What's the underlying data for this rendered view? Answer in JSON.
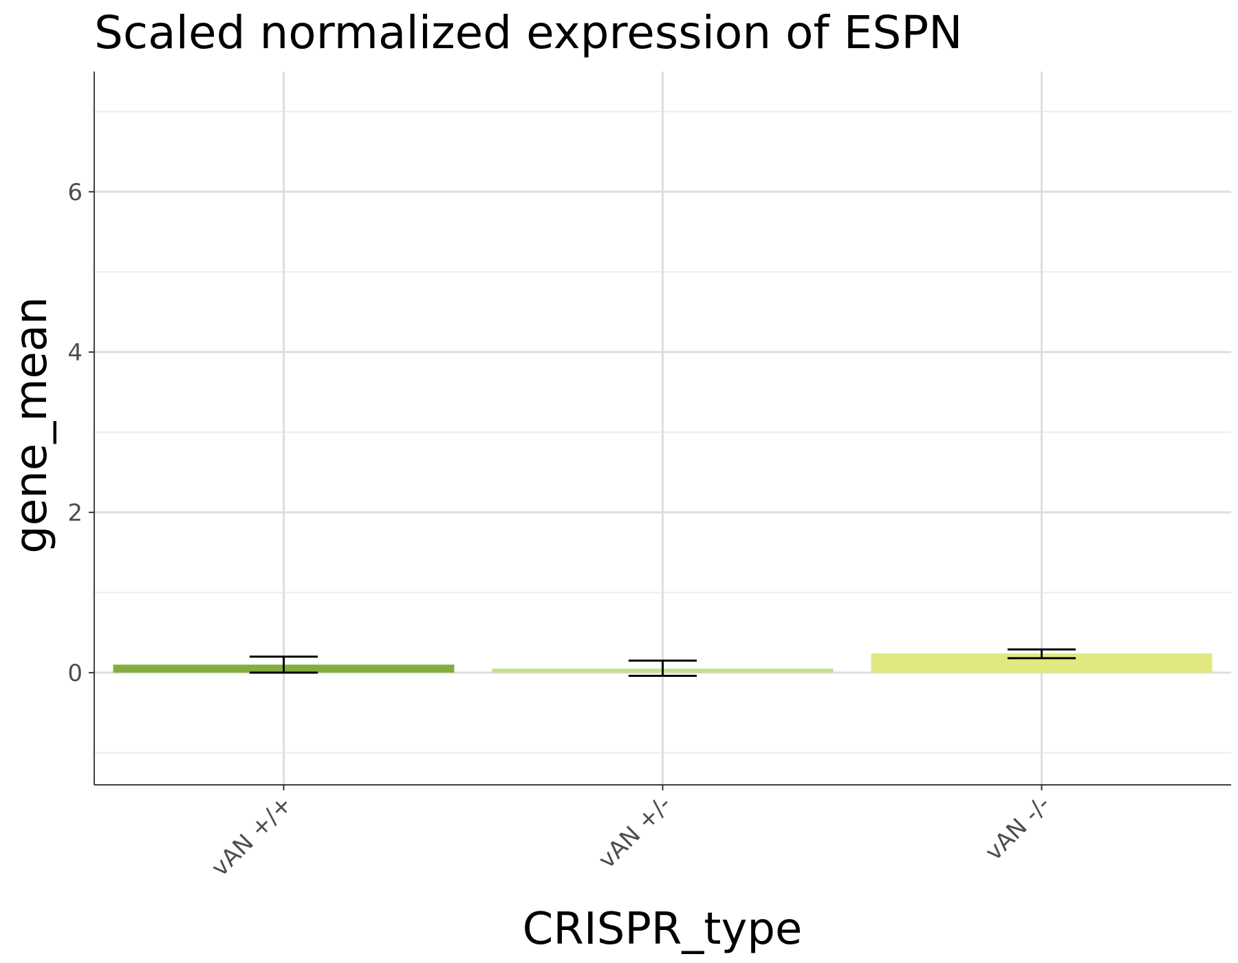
{
  "chart_data": {
    "type": "bar",
    "title": "Scaled normalized expression of ESPN",
    "xlabel": "CRISPR_type",
    "ylabel": "gene_mean",
    "categories": [
      "vAN +/+",
      "vAN +/-",
      "vAN -/-"
    ],
    "values": [
      0.1,
      0.05,
      0.24
    ],
    "error_low": [
      0.0,
      -0.04,
      0.18
    ],
    "error_high": [
      0.2,
      0.15,
      0.29
    ],
    "colors": [
      "#82ae3f",
      "#c4e08c",
      "#e0e87f"
    ],
    "ylim": [
      -1.4,
      7.5
    ],
    "yticks": [
      0,
      2,
      4,
      6
    ],
    "yticks_minor": [
      -1,
      1,
      3,
      5,
      7
    ],
    "grid": true,
    "legend": "none"
  }
}
